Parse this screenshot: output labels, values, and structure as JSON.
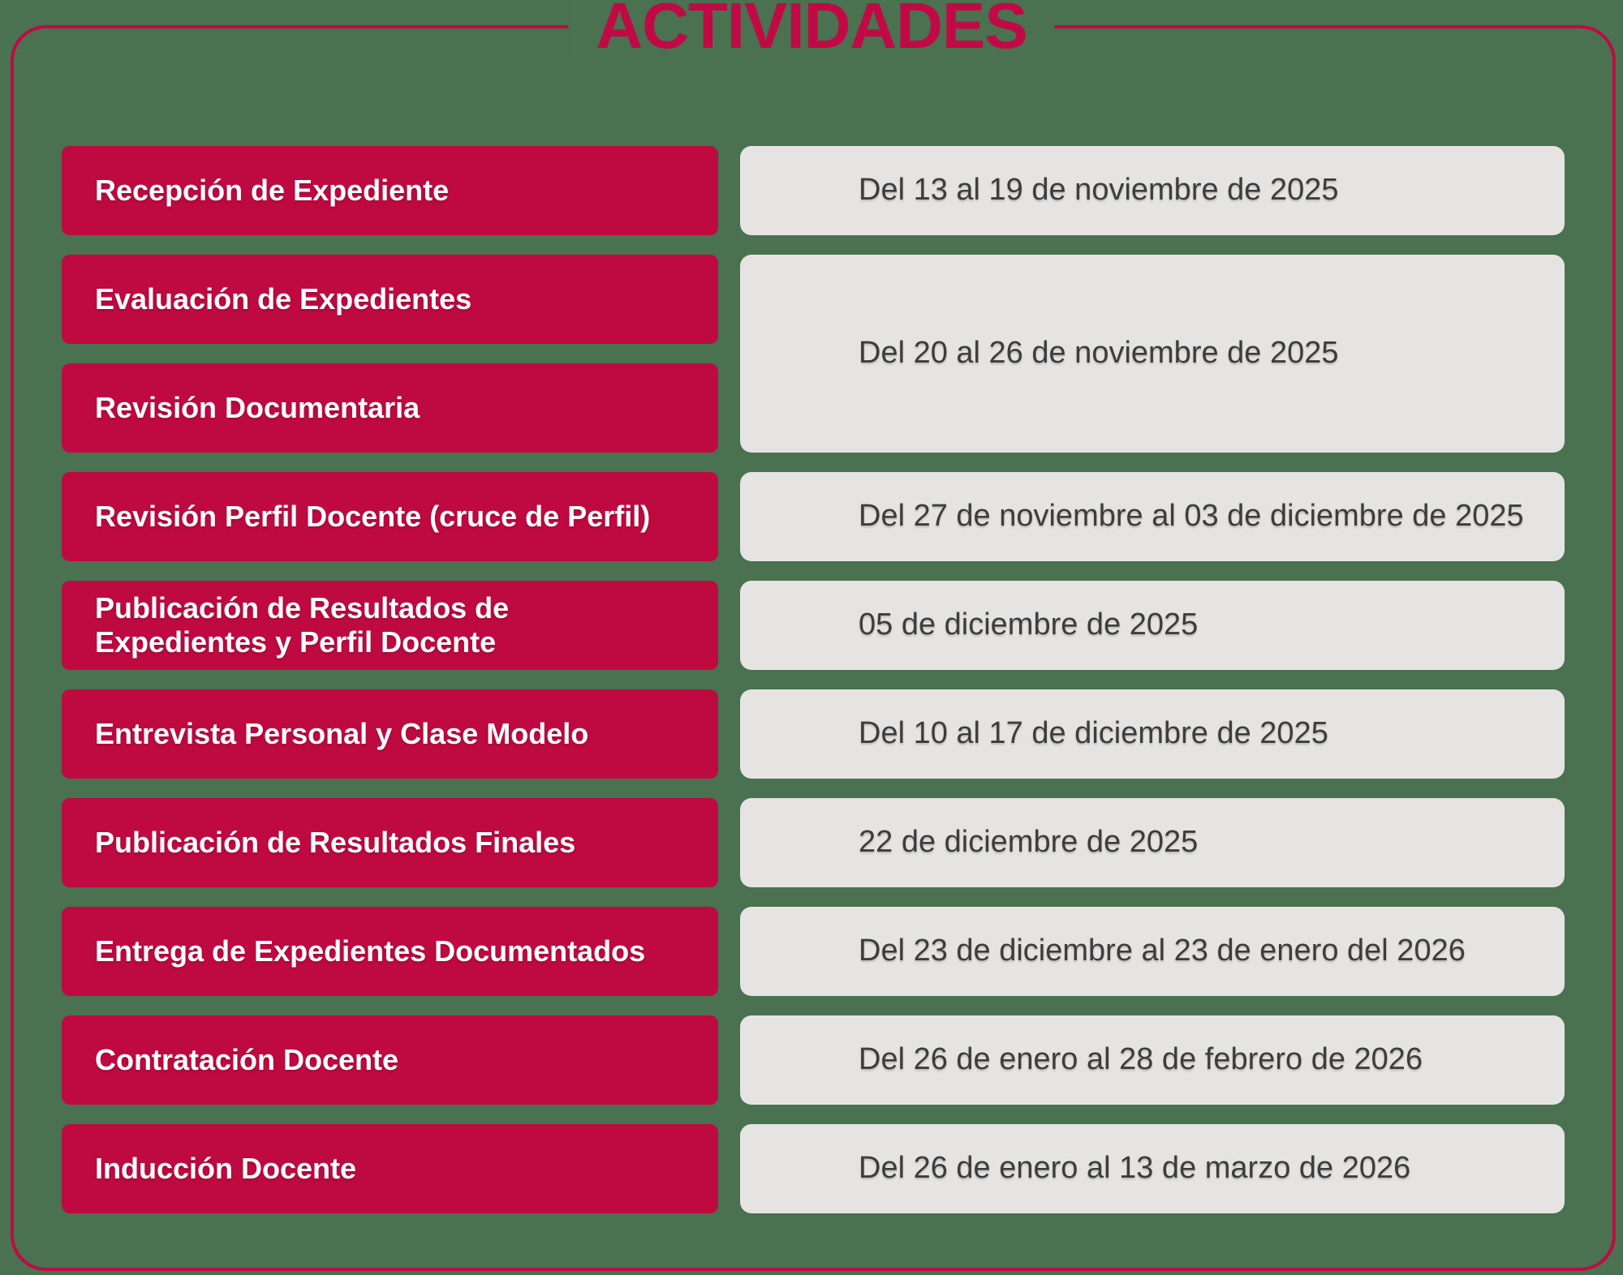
{
  "title": "ACTIVIDADES",
  "colors": {
    "background": "#4A7150",
    "accent_red": "#BE0A40",
    "border_red": "#C10945",
    "box_gray": "#E5E4E2",
    "label_text": "#FFFFFF",
    "date_text": "#3D3D3D"
  },
  "schedule": {
    "rows": [
      {
        "labels": [
          "Recepción de Expediente"
        ],
        "date": "Del 13 al 19 de noviembre de 2025"
      },
      {
        "labels": [
          "Evaluación de Expedientes",
          "Revisión Documentaria"
        ],
        "date": "Del 20 al 26 de noviembre de 2025"
      },
      {
        "labels": [
          "Revisión Perfil Docente (cruce de Perfil)"
        ],
        "date": "Del 27 de noviembre al 03 de diciembre de 2025"
      },
      {
        "labels": [
          "Publicación de Resultados de\nExpedientes y Perfil Docente"
        ],
        "date": "05 de diciembre de 2025"
      },
      {
        "labels": [
          "Entrevista Personal y Clase Modelo"
        ],
        "date": "Del 10 al 17 de diciembre de 2025"
      },
      {
        "labels": [
          "Publicación de Resultados Finales"
        ],
        "date": "22 de diciembre de 2025"
      },
      {
        "labels": [
          "Entrega de Expedientes Documentados"
        ],
        "date": "Del 23 de diciembre al 23 de enero del 2026"
      },
      {
        "labels": [
          "Contratación Docente"
        ],
        "date": "Del 26 de enero al 28 de febrero de 2026"
      },
      {
        "labels": [
          "Inducción Docente"
        ],
        "date": "Del 26 de enero al 13 de marzo de 2026"
      }
    ]
  }
}
